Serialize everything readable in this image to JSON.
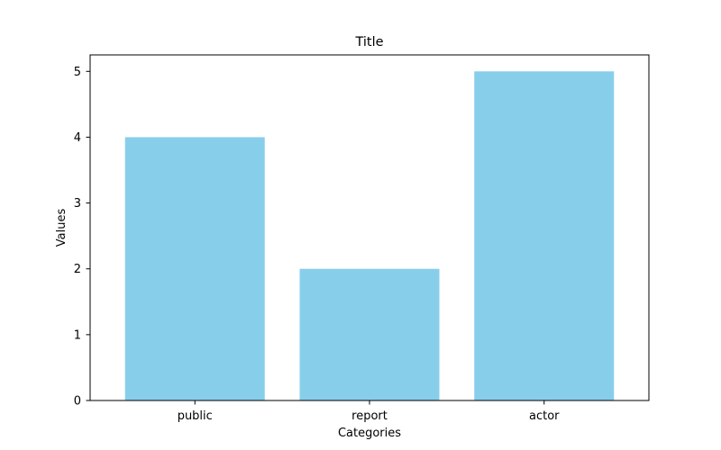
{
  "chart_data": {
    "type": "bar",
    "title": "Title",
    "xlabel": "Categories",
    "ylabel": "Values",
    "categories": [
      "public",
      "report",
      "actor"
    ],
    "values": [
      4,
      2,
      5
    ],
    "ylim": [
      0,
      5.25
    ],
    "yticks": [
      "0",
      "1",
      "2",
      "3",
      "4",
      "5"
    ],
    "bar_color": "#87CEEB",
    "grid": false,
    "legend": "none"
  }
}
